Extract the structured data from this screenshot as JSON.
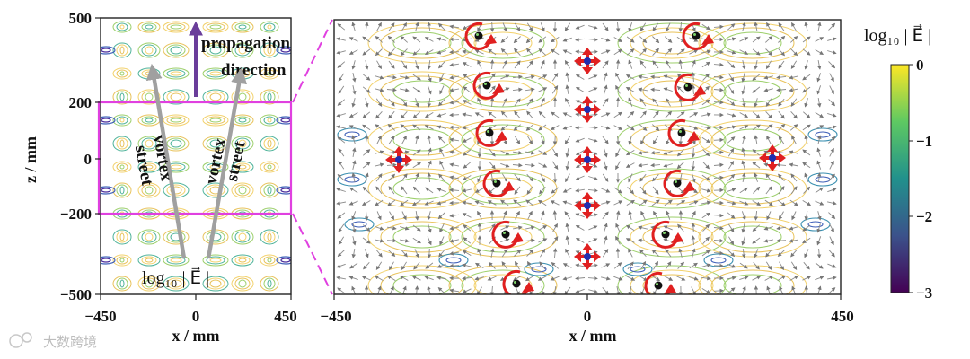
{
  "left_panel": {
    "x_ticks": [
      "−450",
      "0",
      "450"
    ],
    "z_ticks": [
      "500",
      "200",
      "0",
      "−200",
      "−500"
    ],
    "xlabel": "x / mm",
    "ylabel": "z / mm",
    "annotations": {
      "propagation_line1": "propagation",
      "propagation_line2": "direction",
      "vortex_left_1": "vortex",
      "vortex_left_2": "street",
      "vortex_right_1": "vortex",
      "vortex_right_2": "street"
    },
    "field_label": "log₁₀ | E⃗ |",
    "zoom_box_z_range": [
      -200,
      200
    ],
    "xlim": [
      -450,
      450
    ],
    "zlim": [
      -500,
      500
    ]
  },
  "right_panel": {
    "x_ticks": [
      "−450",
      "0",
      "450"
    ],
    "xlabel": "x / mm",
    "xlim": [
      -450,
      450
    ],
    "zlim": [
      -200,
      200
    ]
  },
  "colorbar": {
    "title": "log₁₀ | E⃗ |",
    "ticks": [
      "0",
      "−1",
      "−2",
      "−3"
    ],
    "range": [
      -3,
      0
    ],
    "colors": [
      "#fde725",
      "#5ec962",
      "#21918c",
      "#3b528b",
      "#440154"
    ]
  },
  "watermark": "大数跨境",
  "colors": {
    "zoom_box": "#e040e0",
    "vortex_marker": "#e02020",
    "arrow_gray": "#a0a0a0",
    "propagation_arrow": "#6a3d9a"
  }
}
